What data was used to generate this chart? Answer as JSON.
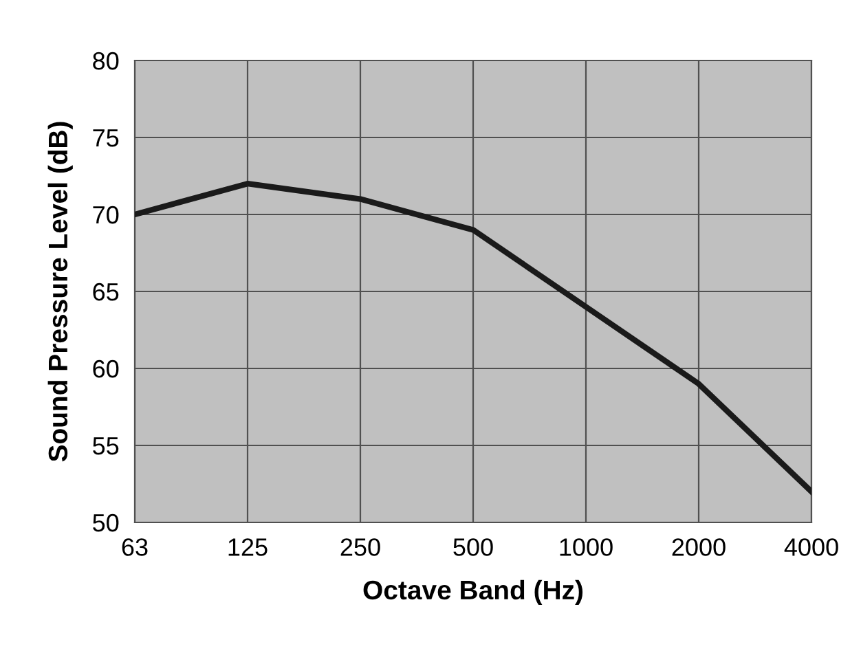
{
  "chart_data": {
    "type": "line",
    "xlabel": "Octave Band (Hz)",
    "ylabel": "Sound Pressure Level (dB)",
    "categories": [
      "63",
      "125",
      "250",
      "500",
      "1000",
      "2000",
      "4000"
    ],
    "series": [
      {
        "color": "#1a1a1a",
        "values": [
          70,
          72,
          71,
          69,
          64,
          59,
          52
        ]
      }
    ],
    "ylim": [
      50,
      80
    ],
    "yticks": [
      50,
      55,
      60,
      65,
      70,
      75,
      80
    ],
    "grid": true,
    "marker": "none",
    "line_style": "solid"
  }
}
